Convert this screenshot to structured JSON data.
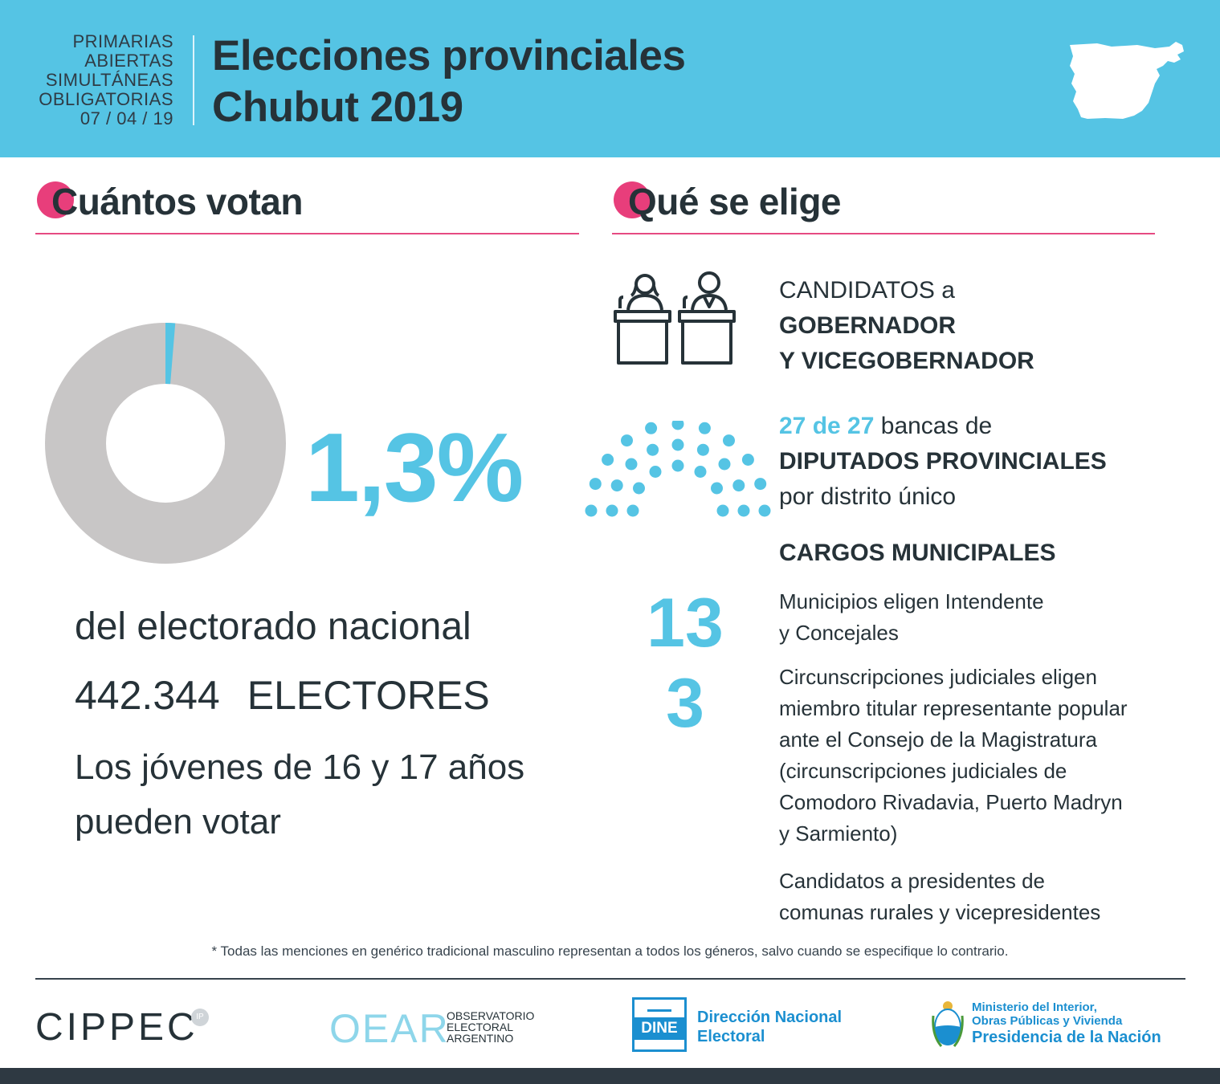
{
  "header": {
    "paso_lines": [
      "PRIMARIAS",
      "ABIERTAS",
      "SIMULTÁNEAS",
      "OBLIGATORIAS",
      "07 / 04 / 19"
    ],
    "title_line1": "Elecciones provinciales",
    "title_line2": "Chubut 2019",
    "map_icon": "chubut-province-map-icon"
  },
  "left": {
    "heading": "Cuántos votan",
    "percent_text": "1,3%",
    "percent_value": 1.3,
    "subtitle": "del electorado nacional",
    "electors_number": "442.344",
    "electors_label": "ELECTORES",
    "youth_line1": "Los jóvenes de 16 y 17 años",
    "youth_line2": "pueden votar"
  },
  "right": {
    "heading": "Qué se elige",
    "cand_prefix": "CANDIDATOS a",
    "cand_line2": "GOBERNADOR",
    "cand_line3": "Y VICEGOBERNADOR",
    "dip_count": "27 de 27",
    "dip_suffix": " bancas de",
    "dip_line2": "DIPUTADOS PROVINCIALES",
    "dip_line3": "por distrito único",
    "seats_total": 27,
    "cargos_title": "CARGOS MUNICIPALES",
    "num_municipios": "13",
    "municipios_l1": "Municipios eligen Intendente",
    "municipios_l2": "y Concejales",
    "num_circ": "3",
    "circ_lines": [
      "Circunscripciones judiciales eligen",
      "miembro titular representante popular",
      "ante el Consejo de la Magistratura",
      "(circunscripciones judiciales de",
      "Comodoro Rivadavia, Puerto Madryn",
      "y Sarmiento)"
    ],
    "comunas_l1": "Candidatos a presidentes de",
    "comunas_l2": "comunas rurales y vicepresidentes"
  },
  "footnote": "* Todas las menciones en genérico tradicional masculino representan a todos los géneros, salvo cuando se especifique lo contrario.",
  "logos": {
    "cippec": "CIPPEC",
    "cippec_badge": "IP",
    "oear": "OEAR",
    "oear_sub": [
      "OBSERVATORIO",
      "ELECTORAL",
      "ARGENTINO"
    ],
    "dine_abbr": "DINE",
    "dine_l1": "Dirección Nacional",
    "dine_l2": "Electoral",
    "min_l1": "Ministerio del Interior,",
    "min_l2": "Obras Públicas y Vivienda",
    "min_l3": "Presidencia de la Nación"
  },
  "colors": {
    "accent_blue": "#55c4e4",
    "accent_pink": "#e83e7b",
    "dark_text": "#263238",
    "donut_gray": "#c8c6c6",
    "dine_blue": "#1b8fd0"
  }
}
